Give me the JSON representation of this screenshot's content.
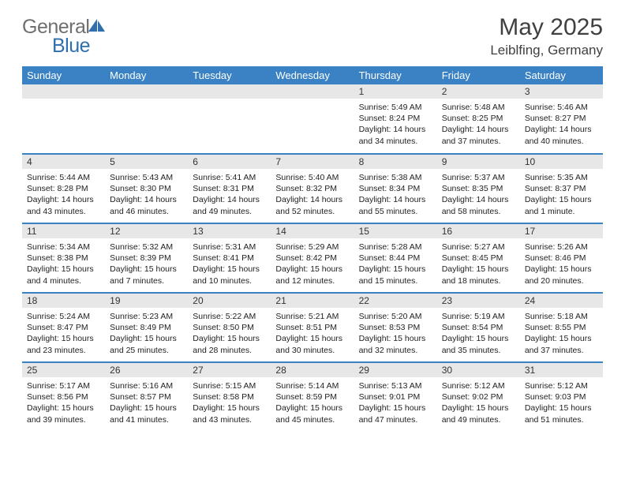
{
  "brand": {
    "part1": "General",
    "part2": "Blue",
    "gray": "#6f6f6f",
    "blue": "#2f6fad",
    "icon_fill": "#2f6fad"
  },
  "header": {
    "title": "May 2025",
    "location": "Leiblfing, Germany"
  },
  "colors": {
    "header_bg": "#3a82c4",
    "header_fg": "#ffffff",
    "daynum_bg": "#e7e7e7",
    "cell_border": "#3a82c4",
    "text": "#222222"
  },
  "weekdays": [
    "Sunday",
    "Monday",
    "Tuesday",
    "Wednesday",
    "Thursday",
    "Friday",
    "Saturday"
  ],
  "weeks": [
    [
      null,
      null,
      null,
      null,
      {
        "n": "1",
        "sr": "5:49 AM",
        "ss": "8:24 PM",
        "dl": "14 hours and 34 minutes."
      },
      {
        "n": "2",
        "sr": "5:48 AM",
        "ss": "8:25 PM",
        "dl": "14 hours and 37 minutes."
      },
      {
        "n": "3",
        "sr": "5:46 AM",
        "ss": "8:27 PM",
        "dl": "14 hours and 40 minutes."
      }
    ],
    [
      {
        "n": "4",
        "sr": "5:44 AM",
        "ss": "8:28 PM",
        "dl": "14 hours and 43 minutes."
      },
      {
        "n": "5",
        "sr": "5:43 AM",
        "ss": "8:30 PM",
        "dl": "14 hours and 46 minutes."
      },
      {
        "n": "6",
        "sr": "5:41 AM",
        "ss": "8:31 PM",
        "dl": "14 hours and 49 minutes."
      },
      {
        "n": "7",
        "sr": "5:40 AM",
        "ss": "8:32 PM",
        "dl": "14 hours and 52 minutes."
      },
      {
        "n": "8",
        "sr": "5:38 AM",
        "ss": "8:34 PM",
        "dl": "14 hours and 55 minutes."
      },
      {
        "n": "9",
        "sr": "5:37 AM",
        "ss": "8:35 PM",
        "dl": "14 hours and 58 minutes."
      },
      {
        "n": "10",
        "sr": "5:35 AM",
        "ss": "8:37 PM",
        "dl": "15 hours and 1 minute."
      }
    ],
    [
      {
        "n": "11",
        "sr": "5:34 AM",
        "ss": "8:38 PM",
        "dl": "15 hours and 4 minutes."
      },
      {
        "n": "12",
        "sr": "5:32 AM",
        "ss": "8:39 PM",
        "dl": "15 hours and 7 minutes."
      },
      {
        "n": "13",
        "sr": "5:31 AM",
        "ss": "8:41 PM",
        "dl": "15 hours and 10 minutes."
      },
      {
        "n": "14",
        "sr": "5:29 AM",
        "ss": "8:42 PM",
        "dl": "15 hours and 12 minutes."
      },
      {
        "n": "15",
        "sr": "5:28 AM",
        "ss": "8:44 PM",
        "dl": "15 hours and 15 minutes."
      },
      {
        "n": "16",
        "sr": "5:27 AM",
        "ss": "8:45 PM",
        "dl": "15 hours and 18 minutes."
      },
      {
        "n": "17",
        "sr": "5:26 AM",
        "ss": "8:46 PM",
        "dl": "15 hours and 20 minutes."
      }
    ],
    [
      {
        "n": "18",
        "sr": "5:24 AM",
        "ss": "8:47 PM",
        "dl": "15 hours and 23 minutes."
      },
      {
        "n": "19",
        "sr": "5:23 AM",
        "ss": "8:49 PM",
        "dl": "15 hours and 25 minutes."
      },
      {
        "n": "20",
        "sr": "5:22 AM",
        "ss": "8:50 PM",
        "dl": "15 hours and 28 minutes."
      },
      {
        "n": "21",
        "sr": "5:21 AM",
        "ss": "8:51 PM",
        "dl": "15 hours and 30 minutes."
      },
      {
        "n": "22",
        "sr": "5:20 AM",
        "ss": "8:53 PM",
        "dl": "15 hours and 32 minutes."
      },
      {
        "n": "23",
        "sr": "5:19 AM",
        "ss": "8:54 PM",
        "dl": "15 hours and 35 minutes."
      },
      {
        "n": "24",
        "sr": "5:18 AM",
        "ss": "8:55 PM",
        "dl": "15 hours and 37 minutes."
      }
    ],
    [
      {
        "n": "25",
        "sr": "5:17 AM",
        "ss": "8:56 PM",
        "dl": "15 hours and 39 minutes."
      },
      {
        "n": "26",
        "sr": "5:16 AM",
        "ss": "8:57 PM",
        "dl": "15 hours and 41 minutes."
      },
      {
        "n": "27",
        "sr": "5:15 AM",
        "ss": "8:58 PM",
        "dl": "15 hours and 43 minutes."
      },
      {
        "n": "28",
        "sr": "5:14 AM",
        "ss": "8:59 PM",
        "dl": "15 hours and 45 minutes."
      },
      {
        "n": "29",
        "sr": "5:13 AM",
        "ss": "9:01 PM",
        "dl": "15 hours and 47 minutes."
      },
      {
        "n": "30",
        "sr": "5:12 AM",
        "ss": "9:02 PM",
        "dl": "15 hours and 49 minutes."
      },
      {
        "n": "31",
        "sr": "5:12 AM",
        "ss": "9:03 PM",
        "dl": "15 hours and 51 minutes."
      }
    ]
  ],
  "labels": {
    "sunrise": "Sunrise: ",
    "sunset": "Sunset: ",
    "daylight": "Daylight: "
  }
}
